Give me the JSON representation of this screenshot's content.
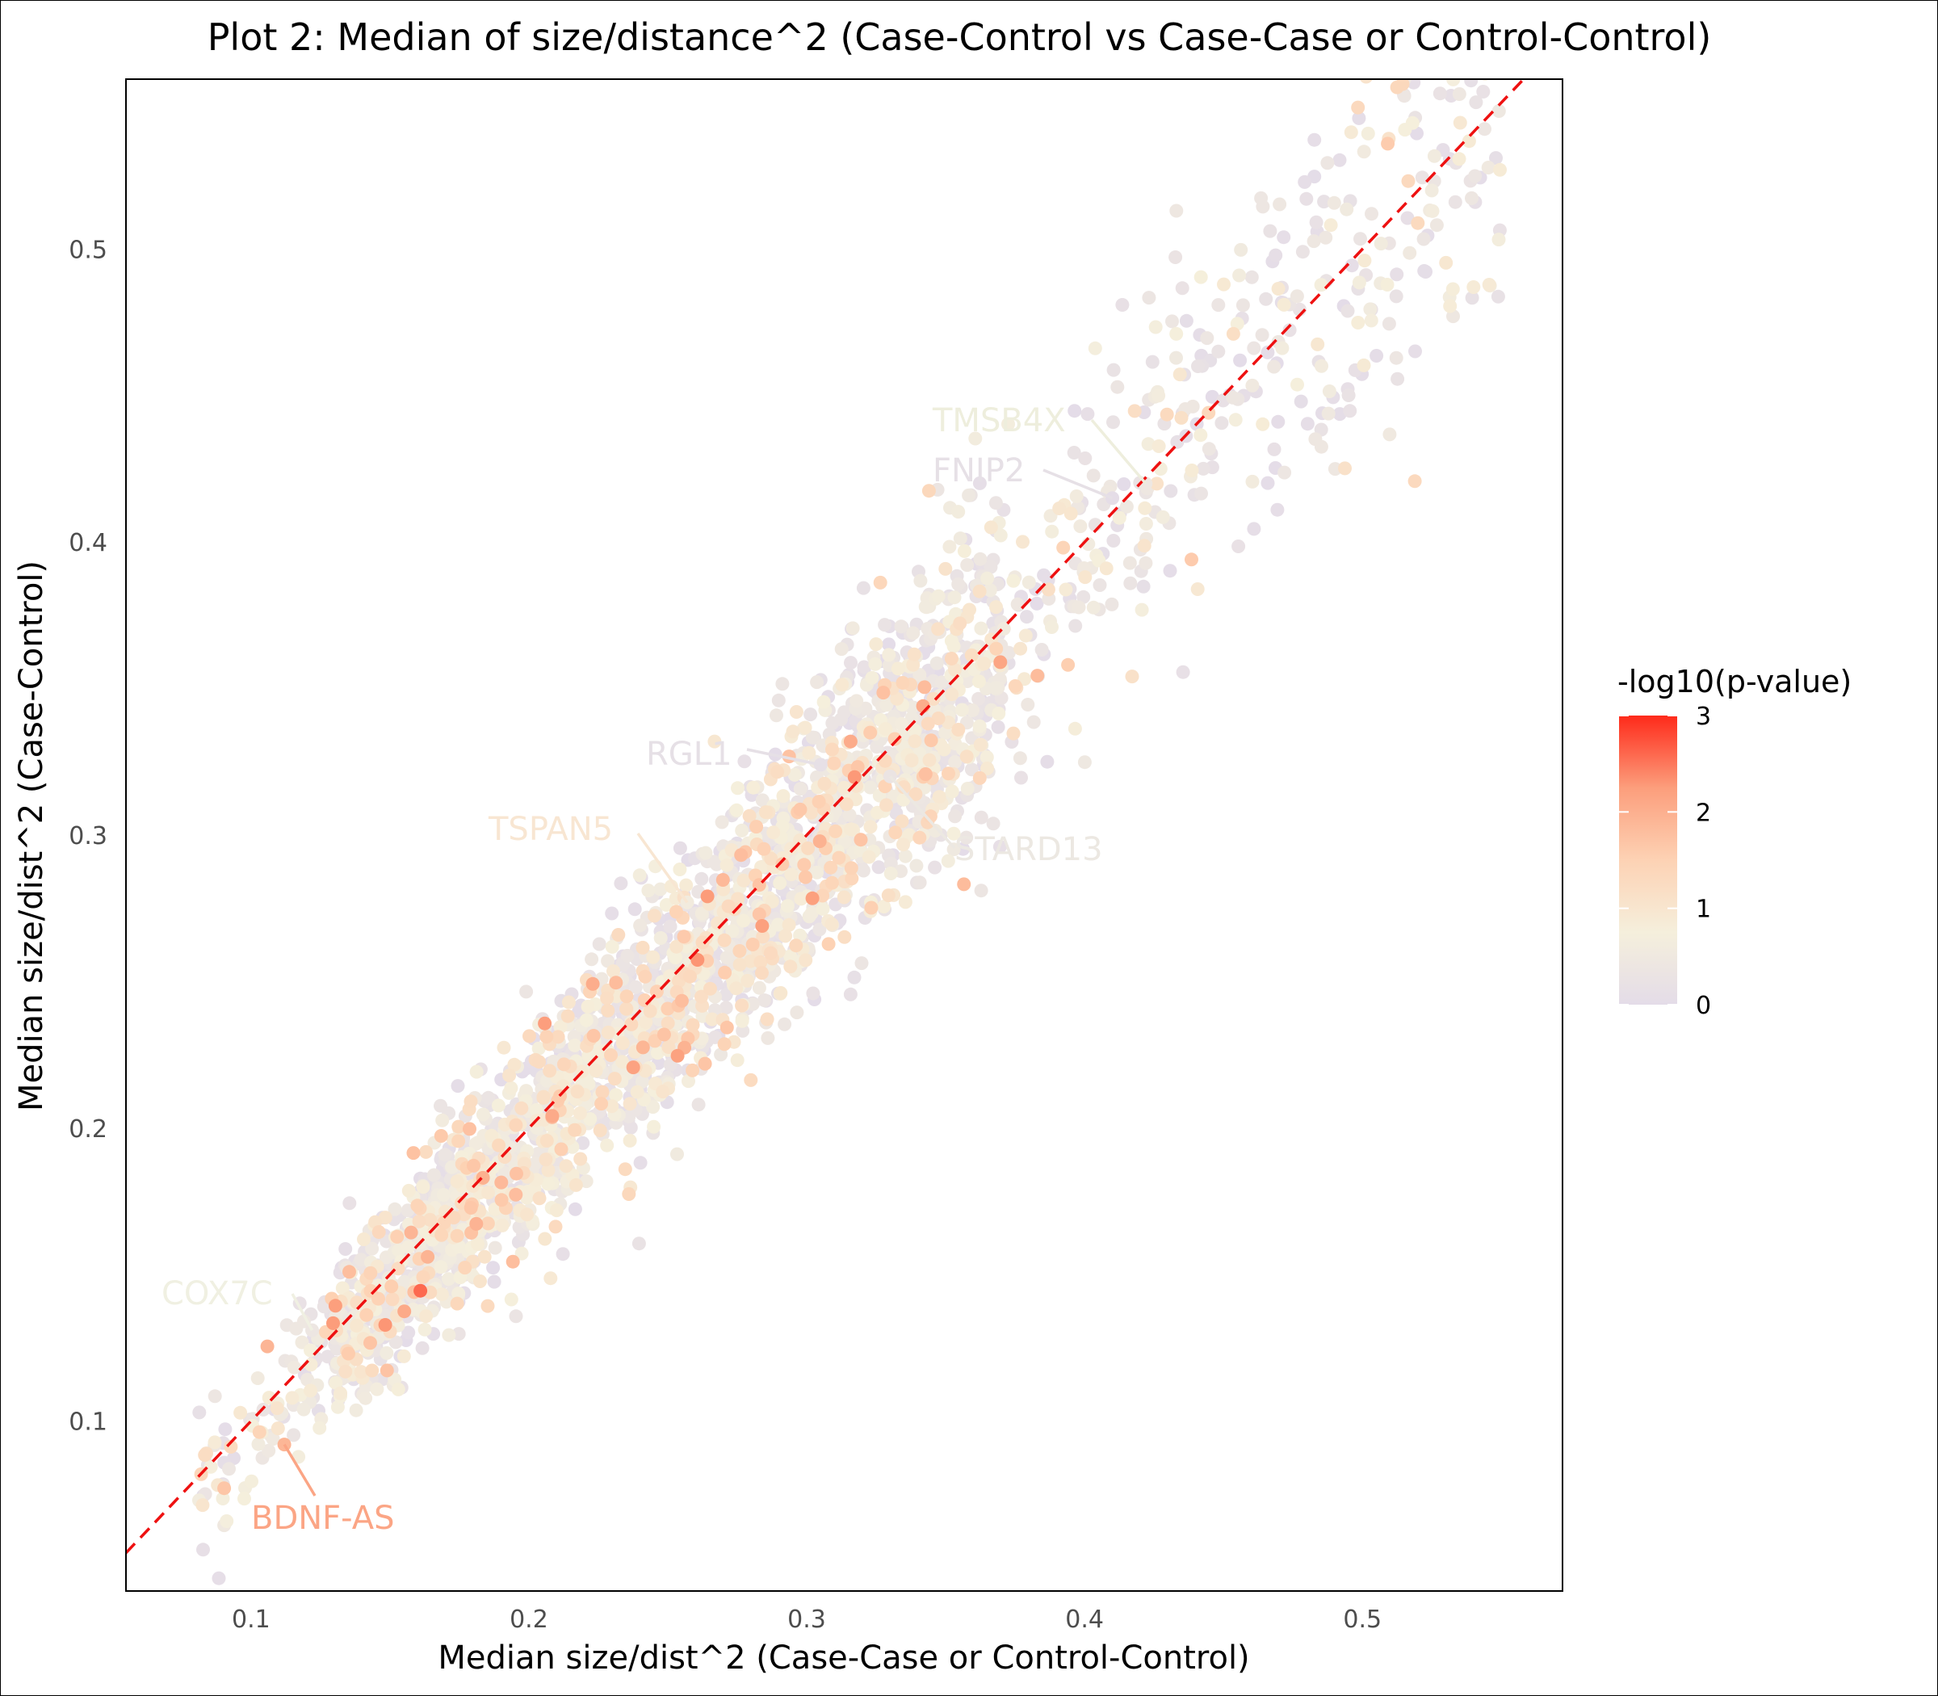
{
  "chart_data": {
    "type": "scatter",
    "title": "Plot 2: Median of size/distance^2 (Case-Control vs Case-Case or Control-Control)",
    "xlabel": "Median size/dist^2 (Case-Case or Control-Control)",
    "ylabel": "Median size/dist^2 (Case-Control)",
    "xlim": [
      0.055,
      0.572
    ],
    "ylim": [
      0.042,
      0.558
    ],
    "x_ticks": [
      "0.1",
      "0.2",
      "0.3",
      "0.4",
      "0.5"
    ],
    "y_ticks": [
      "0.1",
      "0.2",
      "0.3",
      "0.4",
      "0.5"
    ],
    "grid": false,
    "reference_line": {
      "type": "identity",
      "style": "dashed",
      "color": "#ee1111"
    },
    "color_scale": {
      "title": "-log10(p-value)",
      "range": [
        0,
        3
      ],
      "ticks": [
        "0",
        "1",
        "2",
        "3"
      ],
      "colors": [
        "#e4dce8",
        "#f5efdc",
        "#fdd2b4",
        "#fc9e7c",
        "#fe2a1a"
      ],
      "position": "right"
    },
    "point_cloud": {
      "n": 3000,
      "x_range": [
        0.08,
        0.55
      ],
      "relation": "y approximately equal to x",
      "spread_sd_at_x_0_1": 0.012,
      "spread_sd_at_x_0_5": 0.035
    },
    "labeled_points": [
      {
        "label": "TMSB4X",
        "x": 0.422,
        "y": 0.42,
        "neglog10p": 0.45,
        "color": "#eeeedd"
      },
      {
        "label": "FNIP2",
        "x": 0.41,
        "y": 0.415,
        "neglog10p": 0.05,
        "color": "#e6e0e6"
      },
      {
        "label": "RGL1",
        "x": 0.305,
        "y": 0.324,
        "neglog10p": 0.15,
        "color": "#e6e0e6"
      },
      {
        "label": "TSPAN5",
        "x": 0.257,
        "y": 0.277,
        "neglog10p": 0.6,
        "color": "#f8e6d2"
      },
      {
        "label": "STARD13",
        "x": 0.33,
        "y": 0.32,
        "neglog10p": 0.3,
        "color": "#ece8e2"
      },
      {
        "label": "COX7C",
        "x": 0.122,
        "y": 0.131,
        "neglog10p": 0.4,
        "color": "#f0f0e2"
      },
      {
        "label": "BDNF-AS",
        "x": 0.112,
        "y": 0.092,
        "neglog10p": 1.9,
        "color": "#fba585"
      }
    ]
  }
}
